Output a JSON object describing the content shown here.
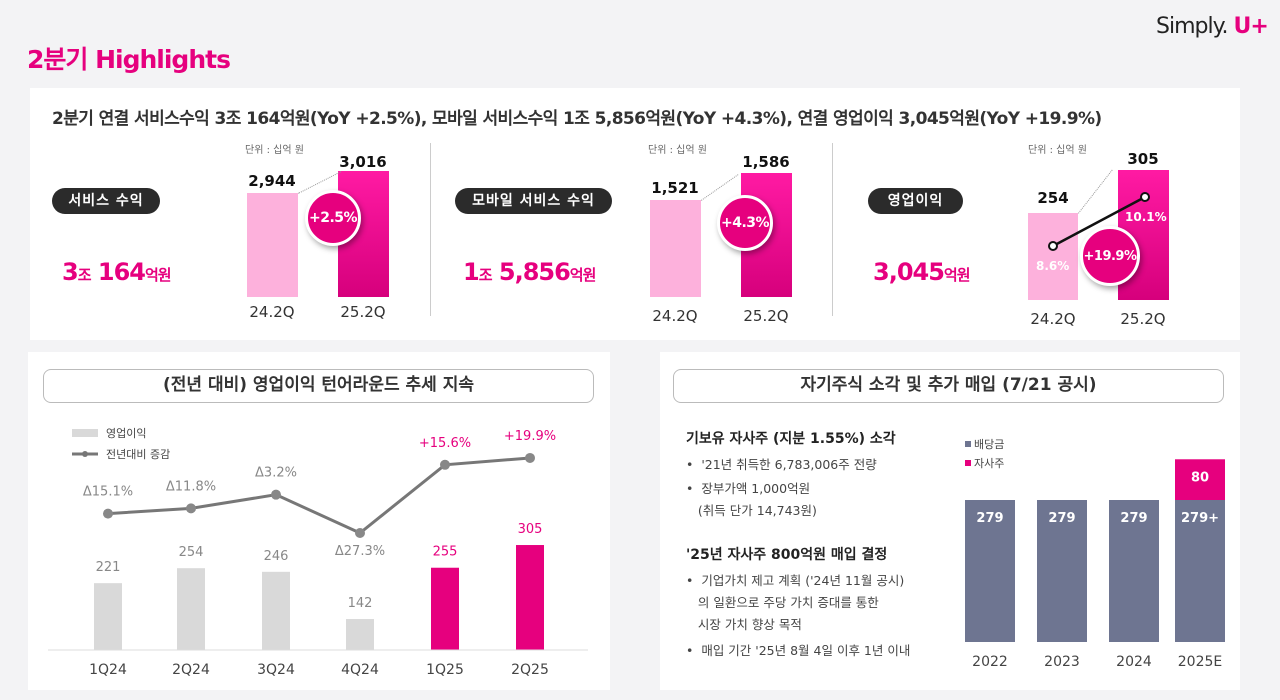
{
  "page": {
    "title": "2분기 Highlights",
    "logo_text": "Simply.",
    "logo_mark": "U+"
  },
  "colors": {
    "brand": "#e6007e",
    "light_bar": "#fdb1dc",
    "gray_bar": "#d9d9d9",
    "dividend_bar": "#6e7591"
  },
  "summary": {
    "headline": "2분기 연결 서비스수익 3조 164억원(YoY +2.5%), 모바일 서비스수익 1조 5,856억원(YoY +4.3%), 연결 영업이익 3,045억원(YoY +19.9%)",
    "sections": [
      {
        "label": "서비스 수익",
        "big_num1": "3",
        "big_unit1": "조",
        "big_num2": "164",
        "big_unit2": "억원",
        "unit_note": "단위 : 십억 원",
        "prev_value": "2,944",
        "curr_value": "3,016",
        "prev_label": "24.2Q",
        "curr_label": "25.2Q",
        "growth": "+2.5%"
      },
      {
        "label": "모바일 서비스 수익",
        "big_num1": "1",
        "big_unit1": "조",
        "big_num2": "5,856",
        "big_unit2": "억원",
        "unit_note": "단위 : 십억 원",
        "prev_value": "1,521",
        "curr_value": "1,586",
        "prev_label": "24.2Q",
        "curr_label": "25.2Q",
        "growth": "+4.3%"
      },
      {
        "label": "영업이익",
        "big_num2": "3,045",
        "big_unit2": "억원",
        "unit_note": "단위 : 십억 원",
        "prev_value": "254",
        "curr_value": "305",
        "prev_label": "24.2Q",
        "curr_label": "25.2Q",
        "growth": "+19.9%",
        "prev_margin": "8.6%",
        "curr_margin": "10.1%"
      }
    ]
  },
  "left_section": {
    "title": "(전년 대비) 영업이익 턴어라운드 추세 지속"
  },
  "right_section": {
    "title": "자기주식 소각 및 추가 매입 (7/21 공시)",
    "block1_title": "기보유 자사주 (지분 1.55%) 소각",
    "block1_items": [
      "'21년 취득한 6,783,006주 전량",
      "장부가액 1,000억원",
      "(취득 단가 14,743원)"
    ],
    "block2_title": "'25년 자사주 800억원 매입 결정",
    "block2_items": [
      "기업가치 제고 계획 ('24년 11월 공시)",
      "의 일환으로 주당 가치 증대를 통한",
      "시장 가치 향상 목적",
      "매입 기간 '25년 8월 4일 이후 1년 이내"
    ]
  },
  "chart_data": [
    {
      "type": "bar+line",
      "categories": [
        "1Q24",
        "2Q24",
        "3Q24",
        "4Q24",
        "1Q25",
        "2Q25"
      ],
      "series": [
        {
          "name": "영업이익",
          "type": "bar",
          "values": [
            221,
            254,
            246,
            142,
            255,
            305
          ],
          "labels": [
            "221",
            "254",
            "246",
            "142",
            "255",
            "305"
          ],
          "highlight": [
            false,
            false,
            false,
            false,
            true,
            true
          ]
        },
        {
          "name": "전년대비 증감",
          "type": "line",
          "values": [
            -15.1,
            -11.8,
            -3.2,
            -27.3,
            15.6,
            19.9
          ],
          "labels": [
            "Δ15.1%",
            "Δ11.8%",
            "Δ3.2%",
            "Δ27.3%",
            "+15.6%",
            "+19.9%"
          ]
        }
      ],
      "legend": "top-left"
    },
    {
      "type": "stacked-bar",
      "categories": [
        "2022",
        "2023",
        "2024",
        "2025E"
      ],
      "series": [
        {
          "name": "배당금",
          "values": [
            279,
            279,
            279,
            279
          ],
          "labels": [
            "279",
            "279",
            "279",
            "279+"
          ]
        },
        {
          "name": "자사주",
          "values": [
            0,
            0,
            0,
            80
          ],
          "labels": [
            "",
            "",
            "",
            "80"
          ]
        }
      ],
      "legend": "top-left"
    }
  ]
}
